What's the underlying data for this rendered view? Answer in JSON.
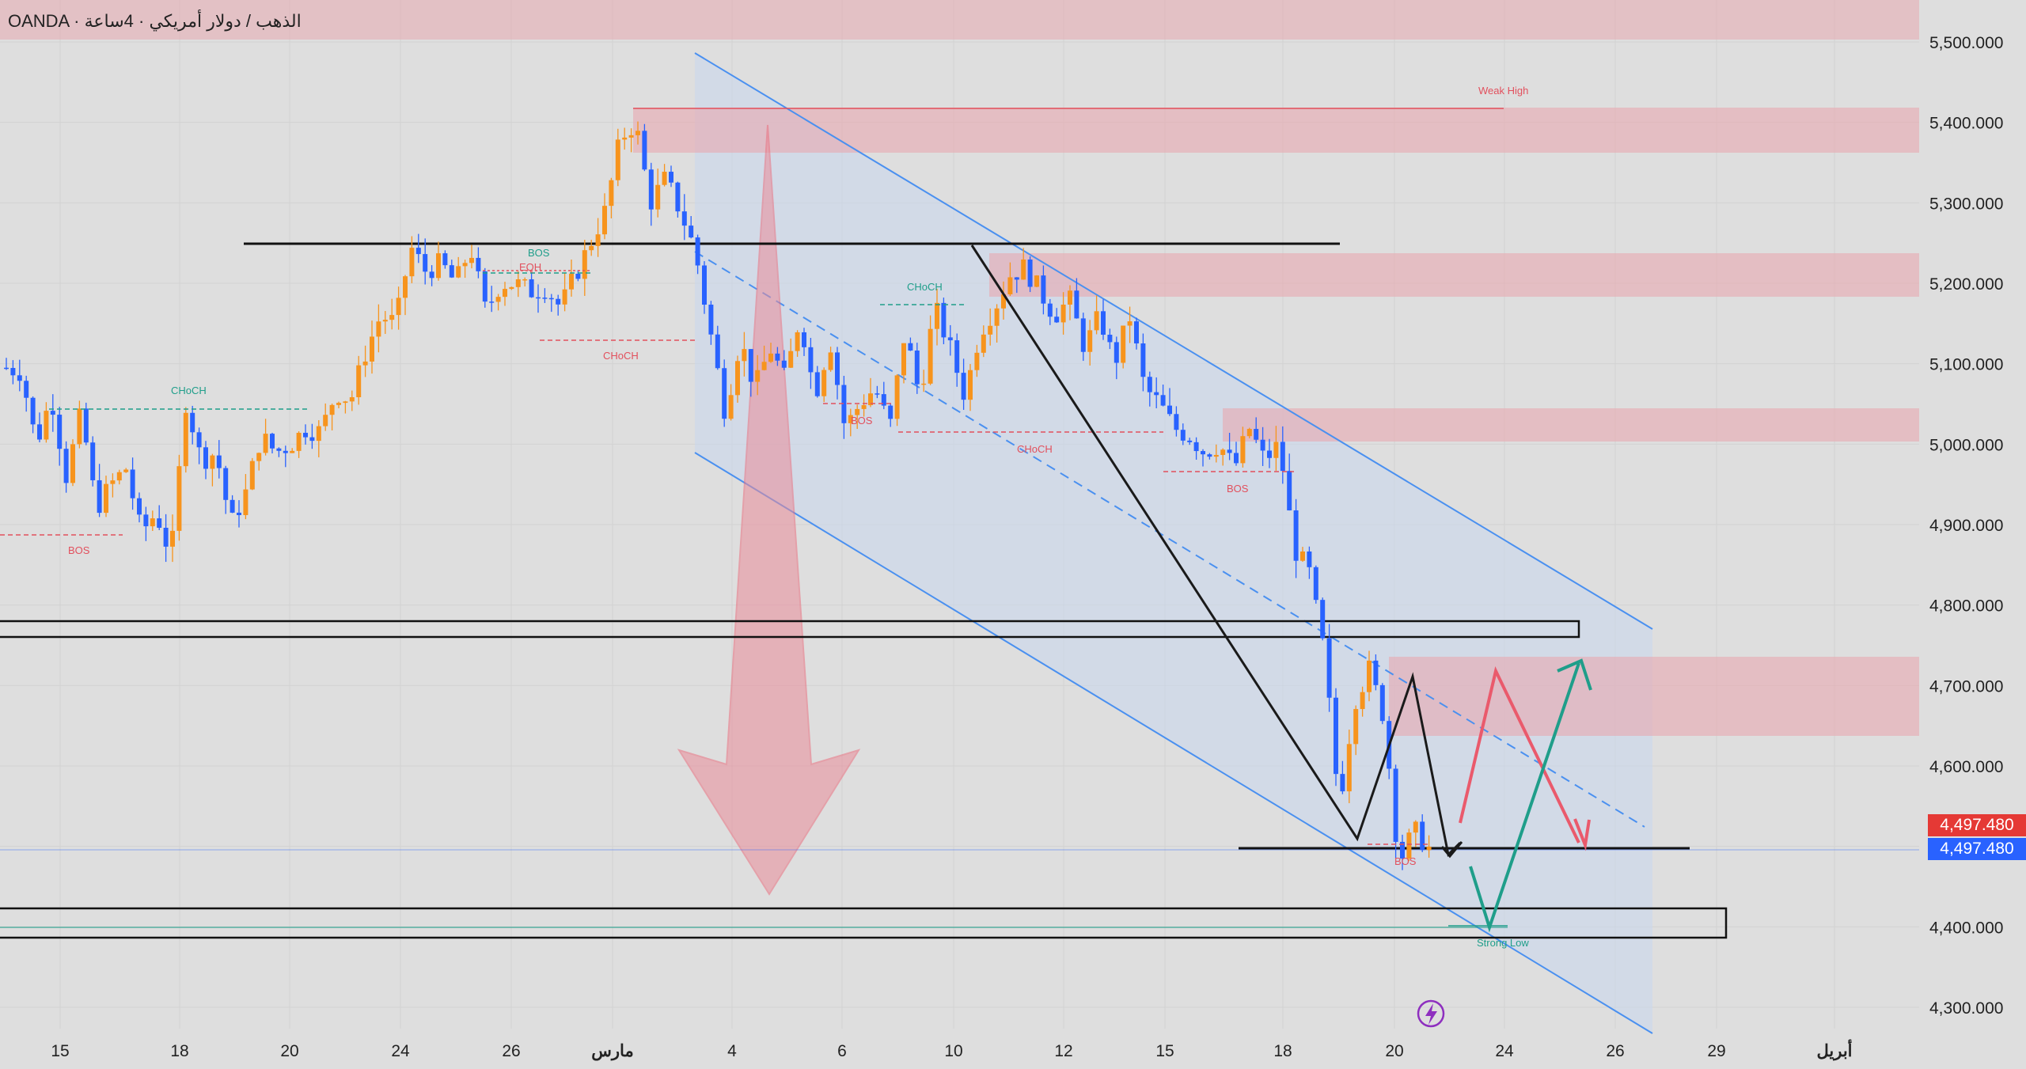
{
  "header": {
    "title": "OANDA · الذهب / دولار أمريكي · 4ساعة"
  },
  "colors": {
    "background": "#dedede",
    "bull_candle": "#f7941d",
    "bear_candle": "#2962ff",
    "supply_zone": "#e8a9b0",
    "channel": "#4a90f0",
    "arrow_red": "#ea5a6c",
    "arrow_green": "#1f9e8a",
    "structure_red": "#e2505d",
    "structure_green": "#1f9e8a"
  },
  "chart_data": {
    "type": "candlestick",
    "y_axis": {
      "ticks": [
        5500,
        5400,
        5300,
        5200,
        5100,
        5000,
        4900,
        4800,
        4700,
        4600,
        4500,
        4400,
        4300
      ],
      "tick_labels": [
        "5,500.000",
        "5,400.000",
        "5,300.000",
        "5,200.000",
        "5,100.000",
        "5,000.000",
        "4,900.000",
        "4,800.000",
        "4,700.000",
        "4,600.000",
        "4,500.000",
        "4,400.000",
        "4,300.000"
      ],
      "range": [
        4270,
        5530
      ]
    },
    "x_axis": {
      "tick_labels": [
        "15",
        "18",
        "20",
        "24",
        "26",
        "مارس",
        "4",
        "6",
        "10",
        "12",
        "15",
        "18",
        "20",
        "24",
        "26",
        "29",
        "أبريل"
      ]
    },
    "current_price": {
      "label_red": "4,497.480",
      "label_blue": "4,497.480",
      "value": 4497.48
    },
    "annotations": {
      "weak_high": "Weak High",
      "strong_low": "Strong Low",
      "bos": "BOS",
      "choch": "CHoCH",
      "eqh": "EQH"
    },
    "path_points": [
      5095,
      5090,
      5000,
      5060,
      4960,
      5040,
      4920,
      4950,
      4970,
      4890,
      4915,
      4860,
      5055,
      4980,
      4990,
      4900,
      4940,
      5010,
      4990,
      5000,
      5020,
      5015,
      5065,
      5055,
      5115,
      5160,
      5150,
      5245,
      5215,
      5225,
      5200,
      5245,
      5165,
      5200,
      5200,
      5190,
      5195,
      5170,
      5210,
      5250,
      5290,
      5380,
      5400,
      5300,
      5330,
      5290,
      5240,
      5140,
      5040,
      5130,
      5070,
      5120,
      5080,
      5160,
      5060,
      5130,
      5020,
      5050,
      5070,
      5020,
      5140,
      5060,
      5170,
      5120,
      5060,
      5140,
      5170,
      5210,
      5220,
      5190,
      5160,
      5180,
      5120,
      5160,
      5100,
      5160,
      5070,
      5050,
      5020,
      5010,
      4990,
      5000,
      4970,
      5020,
      4980,
      5000,
      4870,
      4840,
      4740,
      4550,
      4680,
      4720,
      4660,
      4480,
      4520,
      4497.48
    ]
  }
}
